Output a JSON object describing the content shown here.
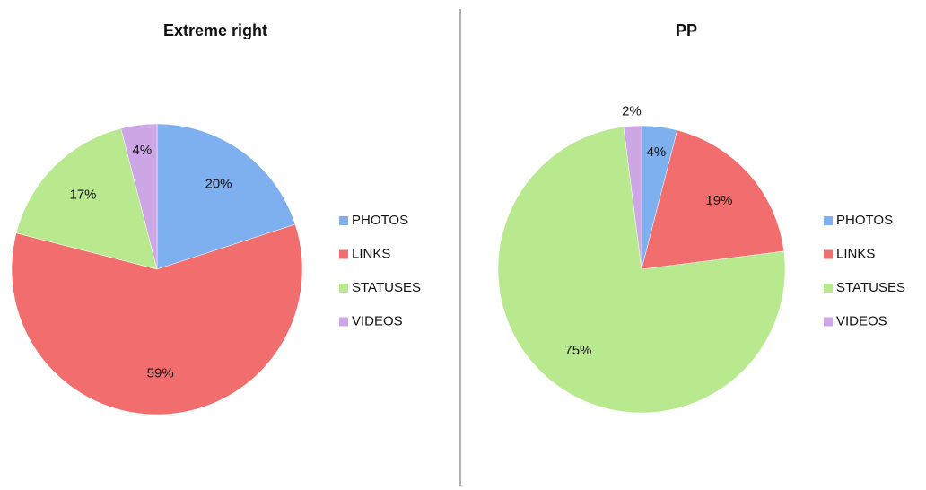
{
  "chart_data": [
    {
      "type": "pie",
      "title": "Extreme right",
      "categories": [
        "PHOTOS",
        "LINKS",
        "STATUSES",
        "VIDEOS"
      ],
      "values": [
        20,
        59,
        17,
        4
      ],
      "value_labels": [
        "20%",
        "59%",
        "17%",
        "4%"
      ],
      "colors": [
        "#7eb0f0",
        "#f26e6e",
        "#b8e98e",
        "#cda6e6"
      ],
      "legend": "right"
    },
    {
      "type": "pie",
      "title": "PP",
      "categories": [
        "PHOTOS",
        "LINKS",
        "STATUSES",
        "VIDEOS"
      ],
      "values": [
        4,
        19,
        75,
        2
      ],
      "value_labels": [
        "4%",
        "19%",
        "75%",
        "2%"
      ],
      "colors": [
        "#7eb0f0",
        "#f26e6e",
        "#b8e98e",
        "#cda6e6"
      ],
      "legend": "right"
    }
  ]
}
